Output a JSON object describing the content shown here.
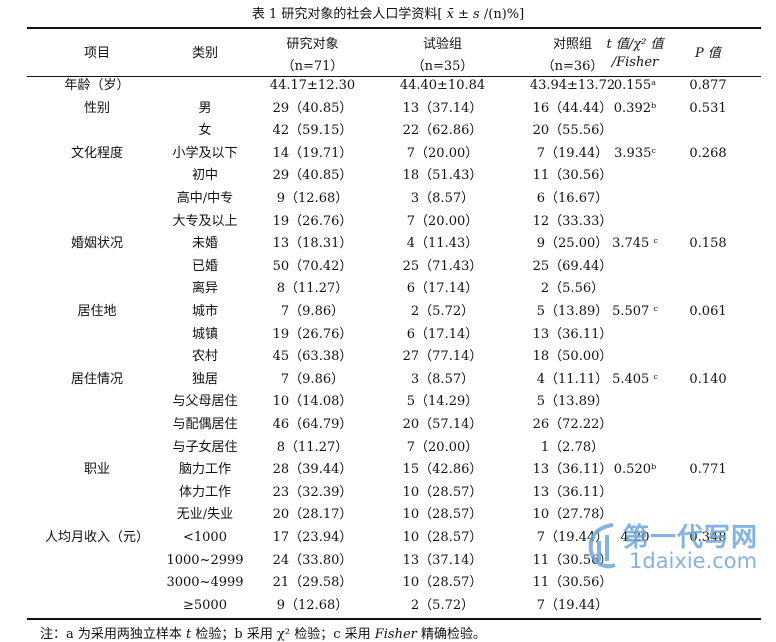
{
  "title": {
    "prefix": "表 1  研究对象的社会人口学资料[ ",
    "formula": "x̄ ± s",
    "suffix": " /(n)%]"
  },
  "header": {
    "project": "项目",
    "category": "类别",
    "study": "研究对象",
    "study_n": "（n=71）",
    "exp": "试验组",
    "exp_n": "（n=35）",
    "ctl": "对照组",
    "ctl_n": "（n=36）",
    "t_line1": "t 值/χ² 值",
    "t_line2": "/Fisher",
    "p": "P 值"
  },
  "rows": [
    {
      "project": "年龄（岁）",
      "category": "",
      "study": "44.17±12.30",
      "exp": "44.40±10.84",
      "ctl": "43.94±13.72",
      "t": "0.155ᵃ",
      "p": "0.877"
    },
    {
      "project": "性别",
      "category": "男",
      "study": "29（40.85）",
      "exp": "13（37.14）",
      "ctl": "16（44.44）",
      "t": "0.392ᵇ",
      "p": "0.531"
    },
    {
      "project": "",
      "category": "女",
      "study": "42（59.15）",
      "exp": "22（62.86）",
      "ctl": "20（55.56）",
      "t": "",
      "p": ""
    },
    {
      "project": "文化程度",
      "category": "小学及以下",
      "study": "14（19.71）",
      "exp": "7（20.00）",
      "ctl": "7（19.44）",
      "t": "3.935ᶜ",
      "p": "0.268"
    },
    {
      "project": "",
      "category": "初中",
      "study": "29（40.85）",
      "exp": "18（51.43）",
      "ctl": "11（30.56）",
      "t": "",
      "p": ""
    },
    {
      "project": "",
      "category": "高中/中专",
      "study": "9（12.68）",
      "exp": "3（8.57）",
      "ctl": "6（16.67）",
      "t": "",
      "p": ""
    },
    {
      "project": "",
      "category": "大专及以上",
      "study": "19（26.76）",
      "exp": "7（20.00）",
      "ctl": "12（33.33）",
      "t": "",
      "p": ""
    },
    {
      "project": "婚姻状况",
      "category": "未婚",
      "study": "13（18.31）",
      "exp": "4（11.43）",
      "ctl": "9（25.00）",
      "t": "3.745 ᶜ",
      "p": "0.158"
    },
    {
      "project": "",
      "category": "已婚",
      "study": "50（70.42）",
      "exp": "25（71.43）",
      "ctl": "25（69.44）",
      "t": "",
      "p": ""
    },
    {
      "project": "",
      "category": "离异",
      "study": "8（11.27）",
      "exp": "6（17.14）",
      "ctl": "2（5.56）",
      "t": "",
      "p": ""
    },
    {
      "project": "居住地",
      "category": "城市",
      "study": "7（9.86）",
      "exp": "2（5.72）",
      "ctl": "5（13.89）",
      "t": "5.507 ᶜ",
      "p": "0.061"
    },
    {
      "project": "",
      "category": "城镇",
      "study": "19（26.76）",
      "exp": "6（17.14）",
      "ctl": "13（36.11）",
      "t": "",
      "p": ""
    },
    {
      "project": "",
      "category": "农村",
      "study": "45（63.38）",
      "exp": "27（77.14）",
      "ctl": "18（50.00）",
      "t": "",
      "p": ""
    },
    {
      "project": "居住情况",
      "category": "独居",
      "study": "7（9.86）",
      "exp": "3（8.57）",
      "ctl": "4（11.11）",
      "t": "5.405 ᶜ",
      "p": "0.140"
    },
    {
      "project": "",
      "category": "与父母居住",
      "study": "10（14.08）",
      "exp": "5（14.29）",
      "ctl": "5（13.89）",
      "t": "",
      "p": ""
    },
    {
      "project": "",
      "category": "与配偶居住",
      "study": "46（64.79）",
      "exp": "20（57.14）",
      "ctl": "26（72.22）",
      "t": "",
      "p": ""
    },
    {
      "project": "",
      "category": "与子女居住",
      "study": "8（11.27）",
      "exp": "7（20.00）",
      "ctl": "1（2.78）",
      "t": "",
      "p": ""
    },
    {
      "project": "职业",
      "category": "脑力工作",
      "study": "28（39.44）",
      "exp": "15（42.86）",
      "ctl": "13（36.11）",
      "t": "0.520ᵇ",
      "p": "0.771"
    },
    {
      "project": "",
      "category": "体力工作",
      "study": "23（32.39）",
      "exp": "10（28.57）",
      "ctl": "13（36.11）",
      "t": "",
      "p": ""
    },
    {
      "project": "",
      "category": "无业/失业",
      "study": "20（28.17）",
      "exp": "10（28.57）",
      "ctl": "10（27.78）",
      "t": "",
      "p": ""
    },
    {
      "project": "人均月收入（元）",
      "category": "<1000",
      "study": "17（23.94）",
      "exp": "10（28.57）",
      "ctl": "7（19.44）",
      "t": "4.20",
      "p": "0.348"
    },
    {
      "project": "",
      "category": "1000~2999",
      "study": "24（33.80）",
      "exp": "13（37.14）",
      "ctl": "11（30.56）",
      "t": "",
      "p": ""
    },
    {
      "project": "",
      "category": "3000~4999",
      "study": "21（29.58）",
      "exp": "10（28.57）",
      "ctl": "11（30.56）",
      "t": "",
      "p": ""
    },
    {
      "project": "",
      "category": "≥5000",
      "study": "9（12.68）",
      "exp": "2（5.72）",
      "ctl": "7（19.44）",
      "t": "",
      "p": ""
    }
  ],
  "note": {
    "p1": "注：a 为采用两独立样本 ",
    "t_italic": "t",
    "p2": " 检验；b 采用 χ² 检验；c 采用 ",
    "fisher_italic": "Fisher",
    "p3": " 精确检验。"
  },
  "watermark": {
    "line1": "第一代写网",
    "line2": "1daixie.com",
    "accent": "#6fa8d8"
  }
}
